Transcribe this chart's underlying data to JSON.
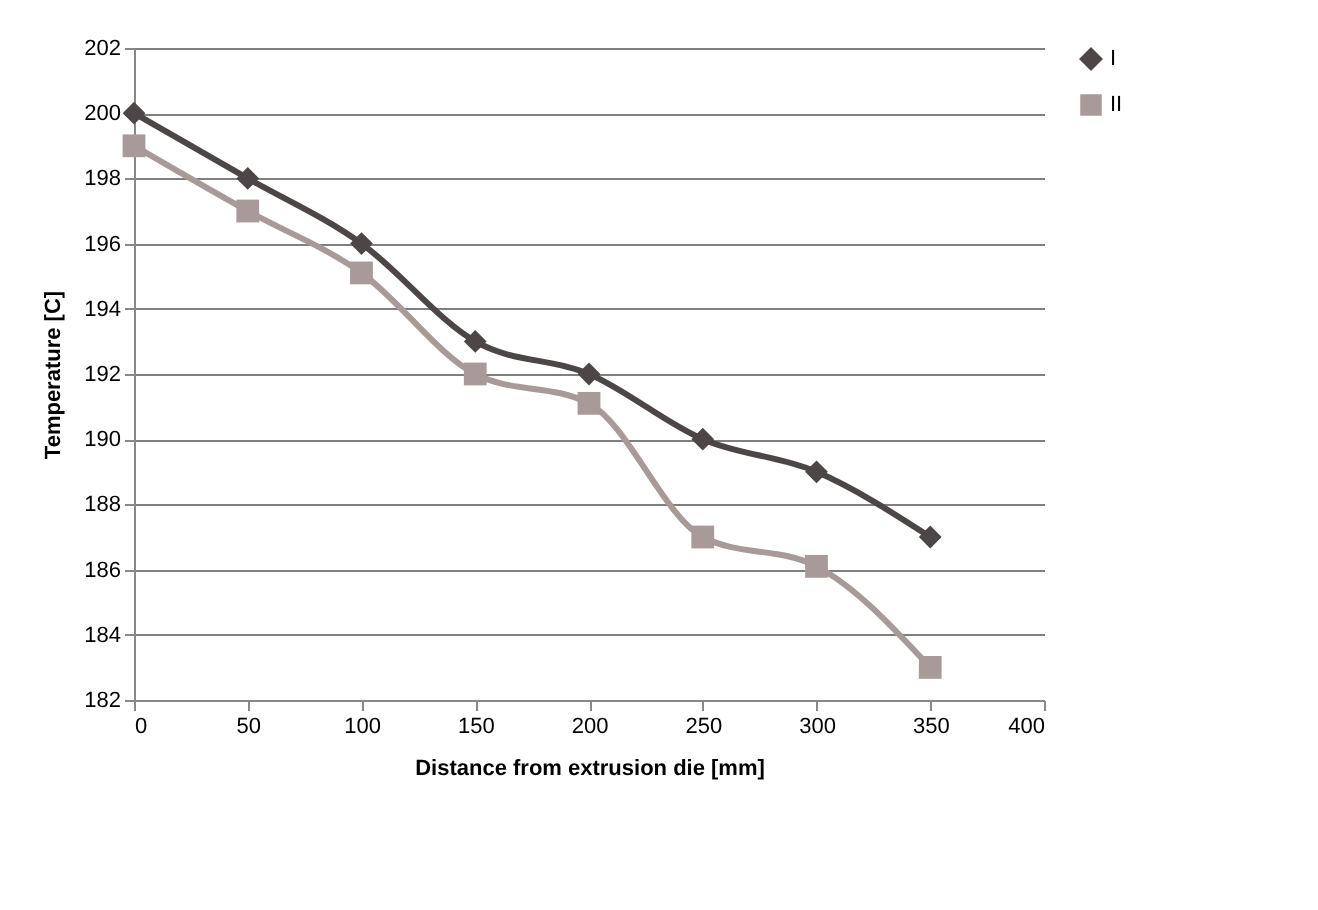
{
  "chart_data": {
    "type": "line",
    "xlabel": "Distance from extrusion die [mm]",
    "ylabel": "Temperature [C]",
    "x": [
      0,
      50,
      100,
      150,
      200,
      250,
      300,
      350
    ],
    "series": [
      {
        "name": "I",
        "color": "#4d4647",
        "marker": "diamond",
        "values": [
          200,
          198,
          196,
          193,
          192,
          190,
          189,
          187
        ]
      },
      {
        "name": "II",
        "color": "#a89a98",
        "marker": "square",
        "values": [
          199,
          197,
          195.1,
          192,
          191.1,
          187,
          186.1,
          183
        ]
      }
    ],
    "xlim": [
      0,
      400
    ],
    "xticks": [
      0,
      50,
      100,
      150,
      200,
      250,
      300,
      350,
      400
    ],
    "ylim": [
      182,
      202
    ],
    "yticks": [
      182,
      184,
      186,
      188,
      190,
      192,
      194,
      196,
      198,
      200,
      202
    ],
    "grid": "y",
    "legend": "right",
    "line_style": "solid"
  }
}
